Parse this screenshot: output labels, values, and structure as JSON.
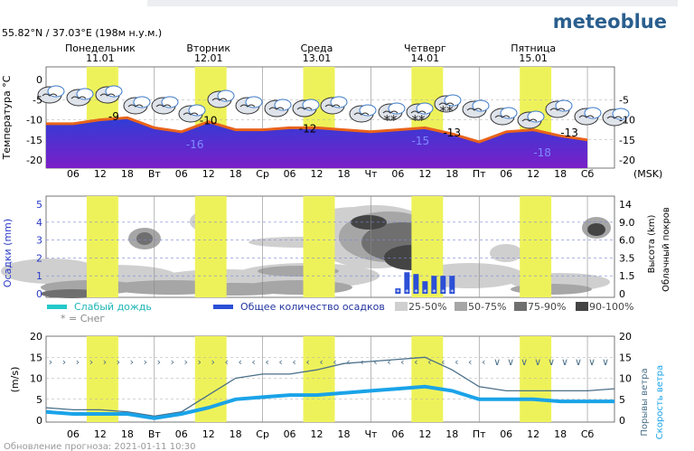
{
  "brand": "meteoblue",
  "location": "55.82°N / 37.03°E (198м н.у.м.)",
  "timezone_label": "(MSK)",
  "update_text": "Обновление прогноза: 2021-01-11 10:30",
  "days": [
    {
      "name": "Понедельник",
      "date": "11.01"
    },
    {
      "name": "Вторник",
      "date": "12.01"
    },
    {
      "name": "Среда",
      "date": "13.01"
    },
    {
      "name": "Четверг",
      "date": "14.01"
    },
    {
      "name": "Пятница",
      "date": "15.01"
    }
  ],
  "x_ticks": [
    "06",
    "12",
    "18",
    "Вт",
    "06",
    "12",
    "18",
    "Ср",
    "06",
    "12",
    "18",
    "Чт",
    "06",
    "12",
    "18",
    "Пт",
    "06",
    "12",
    "18",
    "Сб"
  ],
  "legend": {
    "light_rain": "Слабый дождь",
    "snow": "* = Снег",
    "total_precip": "Общее количество осадков",
    "c25": "25-50%",
    "c50": "50-75%",
    "c75": "75-90%",
    "c90": "90-100%"
  },
  "colors": {
    "temp_line": "#e8631a",
    "temp_fill_top": "#2f3dd6",
    "temp_fill_bottom": "#7b1fc8",
    "daylight": "#eef25a",
    "light_rain": "#25c9c9",
    "total_precip": "#2b4fd6",
    "wind": "#1aa3e8",
    "gust": "#4a6f88",
    "brand": "#2a5f8e"
  },
  "chart_data": [
    {
      "type": "area",
      "ylabel": "Температура °C",
      "ylim": [
        -20,
        0
      ],
      "y_ticks_left": [
        "0",
        "-5",
        "-10",
        "-15",
        "-20"
      ],
      "y_ticks_right": [
        "-5",
        "-10",
        "-15",
        "-20"
      ],
      "x_hours": [
        0,
        6,
        12,
        18,
        24,
        30,
        36,
        42,
        48,
        54,
        60,
        66,
        72,
        78,
        84,
        90,
        96,
        102,
        108,
        114,
        120
      ],
      "temperature": [
        -11,
        -11,
        -10,
        -9.5,
        -12,
        -13,
        -10.5,
        -12.5,
        -12.5,
        -12,
        -12,
        -12.5,
        -13,
        -12.5,
        -12,
        -13.5,
        -15.5,
        -13,
        -12.5,
        -14,
        -15
      ],
      "labels": [
        {
          "hour": 15,
          "value": "-9"
        },
        {
          "hour": 36,
          "value": "-10"
        },
        {
          "hour": 33,
          "value": "-16"
        },
        {
          "hour": 58,
          "value": "-12"
        },
        {
          "hour": 83,
          "value": "-15"
        },
        {
          "hour": 90,
          "value": "-13"
        },
        {
          "hour": 110,
          "value": "-18"
        },
        {
          "hour": 116,
          "value": "-13"
        }
      ]
    },
    {
      "type": "heatmap",
      "ylabel": "Осадки (mm)",
      "ylabel_right_1": "Высота (km)",
      "ylabel_right_2": "Облачный покров",
      "ylim": [
        0,
        5
      ],
      "y_ticks_left": [
        "5",
        "4",
        "3",
        "2",
        "1",
        "0"
      ],
      "y_ticks_right": [
        "14",
        "9.0",
        "6.0",
        "3.5",
        "1.5",
        "0"
      ],
      "precip_bars": [
        {
          "hour": 78,
          "value": 0.3
        },
        {
          "hour": 80,
          "value": 1.2
        },
        {
          "hour": 82,
          "value": 1.1
        },
        {
          "hour": 84,
          "value": 0.7
        },
        {
          "hour": 86,
          "value": 1.0
        },
        {
          "hour": 88,
          "value": 1.0
        },
        {
          "hour": 90,
          "value": 1.0
        }
      ]
    },
    {
      "type": "line",
      "ylabel": "(m/s)",
      "ylabel_right_1": "Порывы ветра",
      "ylabel_right_2": "Скорость ветра",
      "ylim": [
        0,
        20
      ],
      "y_ticks": [
        "20",
        "15",
        "10",
        "5",
        "0"
      ],
      "x_hours": [
        0,
        6,
        12,
        18,
        24,
        30,
        36,
        42,
        48,
        54,
        60,
        66,
        72,
        78,
        84,
        90,
        96,
        102,
        108,
        114,
        120,
        126
      ],
      "wind_speed": [
        2,
        1.5,
        1.5,
        1.5,
        0.5,
        1.5,
        3,
        5,
        5.5,
        6,
        6,
        6.5,
        7,
        7.5,
        8,
        7,
        5,
        5,
        5,
        4.5,
        4.5,
        4.5
      ],
      "wind_gusts": [
        3,
        2.5,
        2.5,
        2,
        1,
        2,
        6,
        10,
        11,
        11,
        12,
        13.5,
        14,
        14.5,
        15,
        12,
        8,
        7,
        7,
        7,
        7,
        7.5
      ]
    }
  ]
}
